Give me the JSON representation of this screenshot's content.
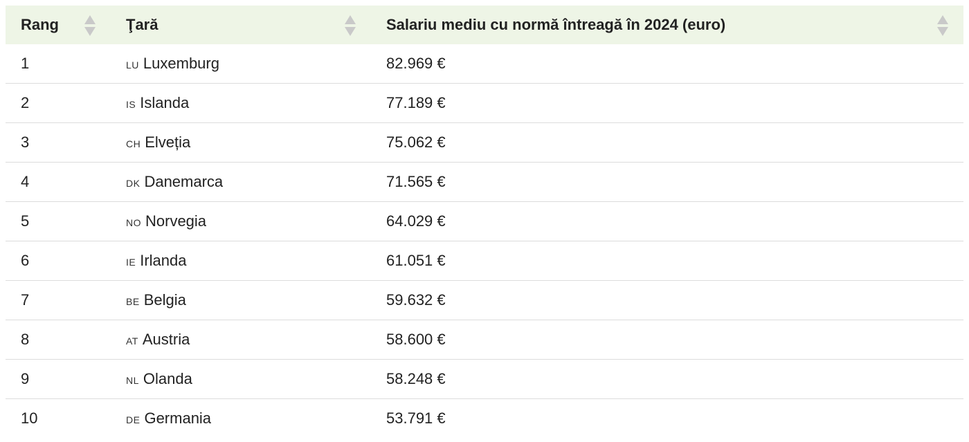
{
  "table": {
    "header": [
      "Rang",
      "Ţară",
      "Salariu mediu cu normă întreagă în 2024 (euro)"
    ],
    "rows": [
      [
        "1",
        "LU",
        "Luxemburg",
        "82.969 €"
      ],
      [
        "2",
        "IS",
        "Islanda",
        "77.189 €"
      ],
      [
        "3",
        "CH",
        "Elveția",
        "75.062 €"
      ],
      [
        "4",
        "DK",
        "Danemarca",
        "71.565 €"
      ],
      [
        "5",
        "NO",
        "Norvegia",
        "64.029 €"
      ],
      [
        "6",
        "IE",
        "Irlanda",
        "61.051 €"
      ],
      [
        "7",
        "BE",
        "Belgia",
        "59.632 €"
      ],
      [
        "8",
        "AT",
        "Austria",
        "58.600 €"
      ],
      [
        "9",
        "NL",
        "Olanda",
        "58.248 €"
      ],
      [
        "10",
        "DE",
        "Germania",
        "53.791 €"
      ]
    ]
  }
}
